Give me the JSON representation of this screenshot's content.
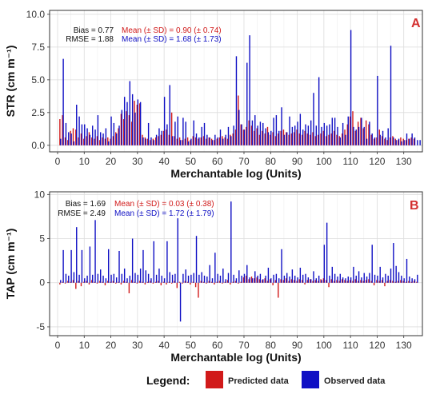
{
  "colors": {
    "predicted": "#d11a1a",
    "observed": "#0f0fc4",
    "panel_letter": "#d32f2f",
    "grid": "#dcdcdc",
    "frame": "#333333",
    "bias_text": "#111111"
  },
  "legend": {
    "title": "Legend:",
    "items": [
      {
        "label": "Predicted data",
        "color": "#d11a1a"
      },
      {
        "label": "Observed data",
        "color": "#0f0fc4"
      }
    ]
  },
  "chart_data": [
    {
      "panel": "A",
      "type": "bar",
      "xlabel": "Merchantable log (Units)",
      "ylabel": "STR (cm m⁻¹)",
      "xlim": [
        -3,
        137
      ],
      "ylim": [
        -0.5,
        10.3
      ],
      "xticks": [
        0,
        10,
        20,
        30,
        40,
        50,
        60,
        70,
        80,
        90,
        100,
        110,
        120,
        130
      ],
      "yticks": [
        0.0,
        2.5,
        5.0,
        7.5,
        10.0
      ],
      "ytick_labels": [
        "0.0",
        "2.5",
        "5.0",
        "7.5",
        "10.0"
      ],
      "grid": true,
      "stats": {
        "bias": "Bias = 0.77",
        "rmse": "RMSE = 1.88",
        "mean_pred": "Mean (± SD)  = 0.90 (± 0.74)",
        "mean_obs": "Mean (± SD)  = 1.68 (± 1.73)"
      },
      "series": [
        {
          "name": "Predicted data",
          "color": "#d11a1a",
          "values": [
            2.0,
            2.3,
            0.6,
            0.4,
            1.1,
            1.3,
            1.2,
            0.6,
            0.9,
            0.5,
            0.7,
            1.0,
            0.6,
            0.5,
            0.7,
            0.4,
            0.6,
            0.5,
            0.6,
            0.5,
            0.7,
            1.0,
            1.3,
            2.4,
            2.0,
            2.6,
            2.3,
            1.8,
            3.4,
            3.1,
            3.2,
            0.8,
            0.6,
            0.5,
            0.4,
            0.5,
            0.6,
            0.7,
            0.8,
            1.1,
            1.2,
            0.8,
            2.5,
            0.7,
            0.5,
            0.6,
            0.4,
            0.5,
            0.6,
            0.4,
            0.7,
            0.6,
            0.5,
            0.6,
            0.7,
            0.5,
            0.6,
            0.5,
            0.4,
            0.5,
            0.6,
            0.7,
            0.6,
            0.5,
            0.8,
            0.9,
            1.2,
            3.8,
            1.6,
            1.2,
            1.4,
            1.9,
            1.5,
            1.1,
            1.3,
            0.8,
            1.1,
            0.9,
            1.4,
            0.8,
            1.0,
            0.7,
            0.9,
            1.1,
            1.2,
            1.0,
            0.8,
            0.9,
            1.0,
            1.2,
            0.9,
            0.8,
            1.1,
            0.9,
            0.8,
            1.0,
            0.7,
            0.8,
            0.9,
            1.1,
            0.7,
            0.8,
            0.9,
            1.1,
            0.8,
            0.7,
            0.9,
            1.2,
            1.6,
            2.2,
            2.6,
            1.1,
            1.8,
            2.1,
            1.3,
            1.9,
            1.6,
            0.8,
            0.5,
            0.6,
            1.2,
            0.7,
            0.5,
            0.4,
            0.6,
            0.7,
            0.5,
            0.4,
            0.6,
            0.5,
            0.4,
            0.5,
            0.6,
            0.5
          ]
        },
        {
          "name": "Observed data",
          "color": "#0f0fc4",
          "values": [
            0.5,
            6.6,
            1.7,
            1.0,
            0.9,
            0.3,
            3.1,
            2.2,
            1.6,
            1.6,
            1.3,
            0.8,
            1.5,
            1.2,
            2.3,
            1.0,
            0.9,
            1.3,
            0.3,
            2.2,
            1.7,
            0.9,
            1.5,
            2.7,
            3.7,
            3.3,
            4.9,
            3.9,
            2.5,
            3.5,
            3.3,
            0.6,
            0.5,
            1.7,
            0.6,
            0.4,
            0.8,
            1.3,
            1.1,
            3.7,
            1.6,
            4.6,
            0.7,
            1.8,
            2.2,
            0.4,
            2.1,
            1.8,
            0.3,
            0.5,
            1.9,
            0.9,
            0.6,
            1.4,
            1.7,
            0.8,
            0.6,
            0.4,
            0.8,
            0.6,
            1.2,
            0.5,
            0.8,
            1.4,
            0.7,
            1.5,
            6.8,
            2.7,
            1.6,
            1.2,
            6.3,
            8.4,
            1.9,
            2.3,
            1.5,
            1.8,
            1.7,
            1.3,
            1.0,
            1.1,
            2.1,
            2.3,
            1.1,
            2.9,
            0.8,
            1.0,
            2.2,
            1.4,
            1.5,
            1.8,
            2.4,
            1.2,
            1.6,
            1.5,
            1.9,
            4.0,
            1.5,
            5.2,
            1.4,
            1.7,
            1.5,
            1.6,
            2.1,
            2.1,
            1.4,
            0.6,
            1.7,
            0.8,
            2.2,
            8.8,
            1.4,
            1.2,
            1.4,
            2.1,
            1.4,
            0.5,
            1.8,
            0.9,
            0.6,
            5.3,
            0.8,
            1.1,
            0.6,
            1.3,
            7.6,
            0.6,
            0.4,
            0.5,
            0.3,
            0.4,
            0.9,
            0.5,
            0.9,
            0.6,
            0.4,
            0.4
          ]
        }
      ]
    },
    {
      "panel": "B",
      "type": "bar",
      "xlabel": "Merchantable log (Units)",
      "ylabel": "TAP (cm m⁻¹)",
      "xlim": [
        -3,
        137
      ],
      "ylim": [
        -6,
        10.3
      ],
      "xticks": [
        0,
        10,
        20,
        30,
        40,
        50,
        60,
        70,
        80,
        90,
        100,
        110,
        120,
        130
      ],
      "yticks": [
        -5,
        0,
        5,
        10
      ],
      "ytick_labels": [
        "-5",
        "0",
        "5",
        "10"
      ],
      "grid": true,
      "stats": {
        "bias": "Bias = 1.69",
        "rmse": "RMSE = 2.49",
        "mean_pred": "Mean (± SD)  = 0.03 (± 0.38)",
        "mean_obs": "Mean (± SD)  = 1.72 (± 1.79)"
      },
      "series": [
        {
          "name": "Predicted data",
          "color": "#d11a1a",
          "values": [
            -0.2,
            0.1,
            -0.1,
            0.2,
            0.1,
            0.3,
            -0.7,
            0.2,
            -0.4,
            0.1,
            0.2,
            -0.2,
            0.3,
            0.1,
            -0.1,
            0.2,
            0.1,
            -0.3,
            0.2,
            0.1,
            0.2,
            -0.1,
            0.1,
            -0.2,
            0.2,
            0.1,
            -1.2,
            0.3,
            0.1,
            -0.1,
            0.2,
            0.1,
            -0.2,
            0.1,
            0.2,
            -0.1,
            0.1,
            0.2,
            -0.3,
            0.1,
            -0.2,
            0.1,
            -0.1,
            0.2,
            -0.6,
            0.1,
            -0.1,
            0.2,
            0.1,
            -0.2,
            0.1,
            -0.5,
            -1.7,
            0.2,
            0.1,
            -0.1,
            0.2,
            0.1,
            -0.2,
            0.1,
            0.2,
            -0.1,
            0.1,
            0.3,
            -0.2,
            0.1,
            0.2,
            -0.1,
            0.1,
            0.6,
            0.8,
            0.4,
            0.7,
            0.5,
            0.6,
            0.4,
            0.3,
            0.5,
            0.2,
            0.4,
            -0.3,
            0.3,
            -1.7,
            0.4,
            0.3,
            0.5,
            0.2,
            0.4,
            0.3,
            0.2,
            0.4,
            0.3,
            -0.2,
            0.3,
            0.4,
            0.2,
            0.3,
            0.2,
            0.4,
            0.5,
            0.3,
            -0.5,
            0.4,
            0.2,
            0.3,
            0.2,
            0.4,
            0.3,
            0.2,
            0.3,
            0.2,
            0.4,
            0.2,
            0.3,
            0.2,
            0.3,
            0.4,
            0.2,
            -0.3,
            0.3,
            0.2,
            0.3,
            -0.4,
            0.2,
            0.3,
            0.2,
            0.1,
            0.2,
            0.3,
            0.2,
            0.1,
            0.2,
            0.1,
            0.2,
            0.1
          ]
        },
        {
          "name": "Observed data",
          "color": "#0f0fc4",
          "values": [
            0.3,
            3.7,
            1.0,
            0.8,
            3.7,
            1.2,
            6.3,
            0.9,
            3.7,
            0.5,
            0.8,
            4.1,
            0.9,
            7.1,
            1.0,
            1.5,
            0.8,
            0.5,
            3.8,
            0.9,
            1.0,
            0.6,
            3.6,
            1.0,
            1.6,
            0.5,
            0.8,
            5.0,
            1.1,
            0.9,
            1.6,
            3.7,
            1.4,
            1.0,
            0.5,
            4.7,
            0.9,
            1.6,
            0.8,
            0.5,
            4.7,
            1.2,
            0.9,
            1.0,
            7.3,
            -4.4,
            1.0,
            1.5,
            0.8,
            0.9,
            1.1,
            5.3,
            0.9,
            1.2,
            0.8,
            0.7,
            2.0,
            0.5,
            3.4,
            1.0,
            0.8,
            1.6,
            0.4,
            1.1,
            9.2,
            0.9,
            0.5,
            1.4,
            0.8,
            1.0,
            2.0,
            0.6,
            0.5,
            1.3,
            0.8,
            1.0,
            0.4,
            0.8,
            1.7,
            0.5,
            0.9,
            1.0,
            0.5,
            3.8,
            0.8,
            1.1,
            0.7,
            1.5,
            0.8,
            0.6,
            1.7,
            0.9,
            1.0,
            0.6,
            0.4,
            1.3,
            0.5,
            0.8,
            0.3,
            4.3,
            6.8,
            0.8,
            1.8,
            1.0,
            0.7,
            1.0,
            0.6,
            0.5,
            0.7,
            0.6,
            1.8,
            0.8,
            1.3,
            0.6,
            1.1,
            0.7,
            1.1,
            4.3,
            0.9,
            0.8,
            1.8,
            0.6,
            1.0,
            0.8,
            1.6,
            4.5,
            1.9,
            1.2,
            0.8,
            0.5,
            2.7,
            0.7,
            0.5,
            0.4,
            0.9
          ]
        }
      ]
    }
  ]
}
